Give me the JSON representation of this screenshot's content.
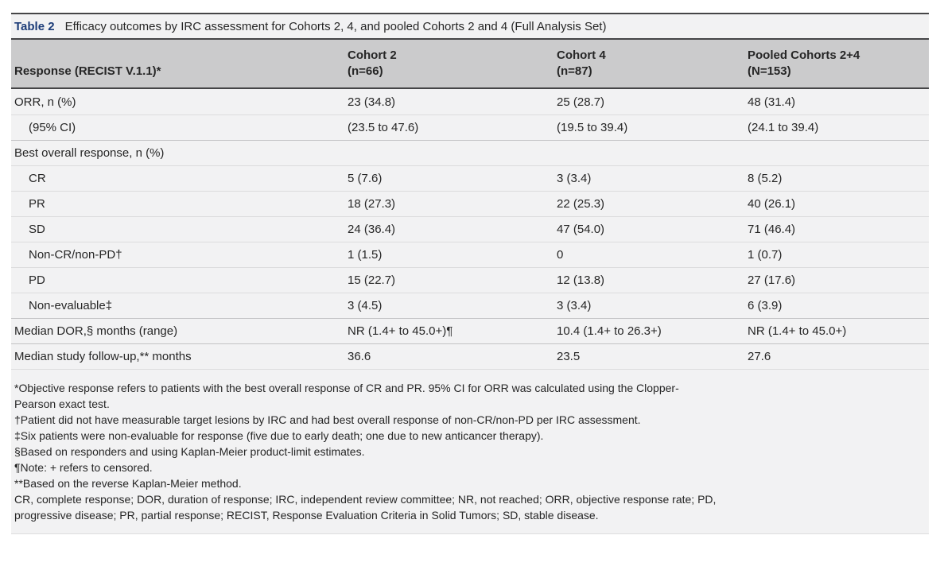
{
  "table": {
    "label": "Table 2",
    "caption": "Efficacy outcomes by IRC assessment for Cohorts 2, 4, and pooled Cohorts 2 and 4 (Full Analysis Set)",
    "header": {
      "row_label": "Response (RECIST V.1.1)*",
      "columns": [
        {
          "name": "Cohort 2",
          "n": "(n=66)"
        },
        {
          "name": "Cohort 4",
          "n": "(n=87)"
        },
        {
          "name": "Pooled Cohorts 2+4",
          "n": "(N=153)"
        }
      ]
    },
    "rows": [
      {
        "label": "ORR, n (%)",
        "indent": false,
        "group_start": false,
        "values": [
          "23 (34.8)",
          "25 (28.7)",
          "48 (31.4)"
        ]
      },
      {
        "label": "(95% CI)",
        "indent": true,
        "group_start": false,
        "values": [
          "(23.5 to 47.6)",
          "(19.5 to 39.4)",
          "(24.1 to 39.4)"
        ]
      },
      {
        "label": "Best overall response, n (%)",
        "indent": false,
        "group_start": true,
        "values": [
          "",
          "",
          ""
        ]
      },
      {
        "label": "CR",
        "indent": true,
        "group_start": false,
        "values": [
          "5 (7.6)",
          "3 (3.4)",
          "8 (5.2)"
        ]
      },
      {
        "label": "PR",
        "indent": true,
        "group_start": false,
        "values": [
          "18 (27.3)",
          "22 (25.3)",
          "40 (26.1)"
        ]
      },
      {
        "label": "SD",
        "indent": true,
        "group_start": false,
        "values": [
          "24 (36.4)",
          "47 (54.0)",
          "71 (46.4)"
        ]
      },
      {
        "label": "Non-CR/non-PD†",
        "indent": true,
        "group_start": false,
        "values": [
          "1 (1.5)",
          "0",
          "1 (0.7)"
        ]
      },
      {
        "label": "PD",
        "indent": true,
        "group_start": false,
        "values": [
          "15 (22.7)",
          "12 (13.8)",
          "27 (17.6)"
        ]
      },
      {
        "label": "Non-evaluable‡",
        "indent": true,
        "group_start": false,
        "values": [
          "3 (4.5)",
          "3 (3.4)",
          "6 (3.9)"
        ]
      },
      {
        "label": "Median DOR,§ months (range)",
        "indent": false,
        "group_start": true,
        "values": [
          "NR (1.4+ to 45.0+)¶",
          "10.4 (1.4+ to 26.3+)",
          "NR (1.4+ to 45.0+)"
        ]
      },
      {
        "label": "Median study follow-up,** months",
        "indent": false,
        "group_start": true,
        "values": [
          "36.6",
          "23.5",
          "27.6"
        ]
      }
    ],
    "footnote_lines": [
      "*Objective response refers to patients with the best overall response of CR and PR. 95% CI for ORR was calculated using the Clopper-",
      "Pearson exact test.",
      "†Patient did not have measurable target lesions by IRC and had best overall response of non-CR/non-PD per IRC assessment.",
      "‡Six patients were non-evaluable for response (five due to early death; one due to new anticancer therapy).",
      "§Based on responders and using Kaplan-Meier product-limit estimates.",
      "¶Note: + refers to censored.",
      "**Based on the reverse Kaplan-Meier method.",
      "CR, complete response; DOR, duration of response; IRC, independent review committee; NR, not reached; ORR, objective response rate; PD,",
      "progressive disease; PR, partial response; RECIST, Response Evaluation Criteria in Solid Tumors; SD, stable disease."
    ]
  },
  "colors": {
    "accent_blue": "#1c3c78",
    "header_bg": "#cbcbcc",
    "panel_bg": "#f2f2f3",
    "rule_dark": "#454547",
    "row_line": "#dcdcdd",
    "section_line": "#c2c2c4",
    "text": "#262626"
  }
}
